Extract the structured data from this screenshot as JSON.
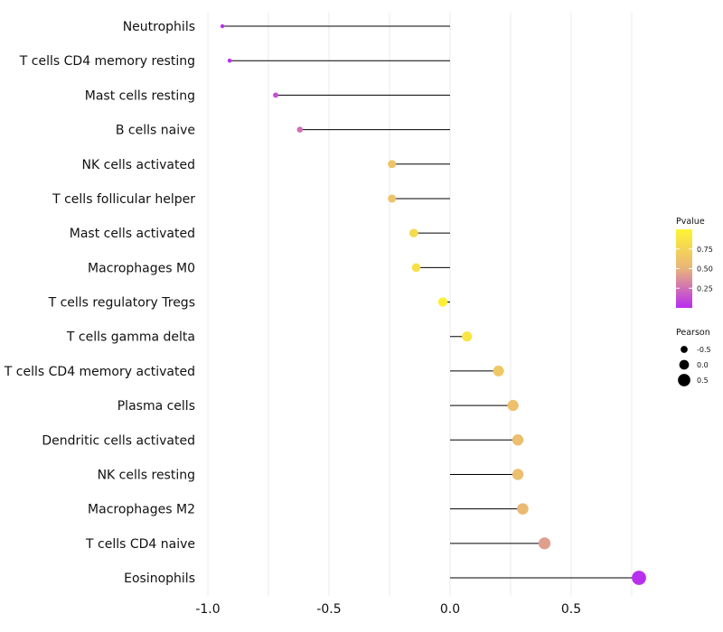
{
  "chart_data": {
    "type": "lollipop",
    "title": "",
    "xlabel": "",
    "ylabel": "",
    "xlim": [
      -1.0,
      0.8
    ],
    "xticks": [
      -1.0,
      -0.5,
      0.0,
      0.5
    ],
    "xtick_labels": [
      "-1.0",
      "-0.5",
      "0.0",
      "0.5"
    ],
    "baseline": 0.0,
    "categories": [
      "Neutrophils",
      "T cells CD4 memory resting",
      "Mast cells resting",
      "B cells naive",
      "NK cells activated",
      "T cells follicular helper",
      "Mast cells activated",
      "Macrophages M0",
      "T cells regulatory  Tregs ",
      "T cells gamma delta",
      "T cells CD4 memory activated",
      "Plasma cells",
      "Dendritic cells activated",
      "NK cells resting",
      "Macrophages M2",
      "T cells CD4 naive",
      "Eosinophils"
    ],
    "pearson": [
      -0.94,
      -0.91,
      -0.72,
      -0.62,
      -0.24,
      -0.24,
      -0.15,
      -0.14,
      -0.03,
      0.07,
      0.2,
      0.26,
      0.28,
      0.28,
      0.3,
      0.39,
      0.78
    ],
    "pvalue": [
      0.01,
      0.01,
      0.12,
      0.24,
      0.62,
      0.62,
      0.8,
      0.85,
      0.97,
      0.88,
      0.65,
      0.6,
      0.58,
      0.58,
      0.55,
      0.42,
      0.01
    ],
    "legend": {
      "pvalue": {
        "title": "Pvalue",
        "ticks": [
          0.75,
          0.5,
          0.25
        ],
        "tick_labels": [
          "0.75",
          "0.50",
          "0.25"
        ],
        "range": [
          0.0,
          1.0
        ],
        "color_low": "#b82cf0",
        "color_mid": "#e8b47a",
        "color_high": "#fff433"
      },
      "pearson": {
        "title": "Pearson",
        "values": [
          -0.5,
          0.0,
          0.5
        ],
        "labels": [
          "-0.5",
          "0.0",
          "0.5"
        ]
      }
    }
  }
}
